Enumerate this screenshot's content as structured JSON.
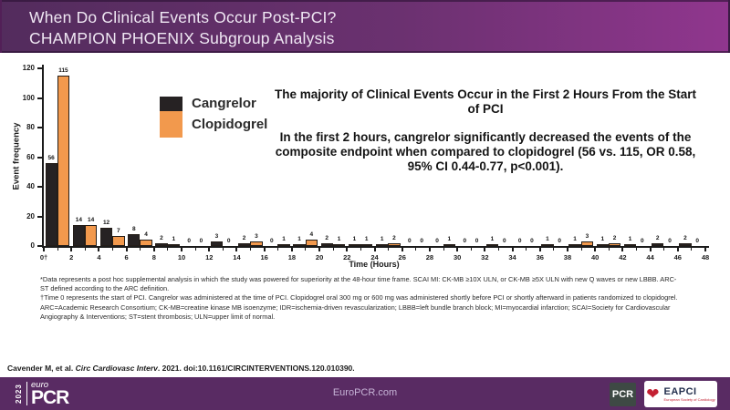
{
  "header": {
    "line1": "When Do Clinical Events Occur Post-PCI?",
    "line2": "CHAMPION PHOENIX Subgroup Analysis"
  },
  "chart_data": {
    "type": "bar",
    "title": "",
    "xlabel": "Time (Hours)",
    "ylabel": "Event frequency",
    "ylim": [
      0,
      120
    ],
    "xlim_hours": [
      0,
      48
    ],
    "bin_width_hours": 2,
    "grid": false,
    "legend_position": "inside-upper-left",
    "y_ticks": [
      0,
      20,
      40,
      60,
      80,
      100,
      120
    ],
    "x_tick_labels": [
      "0†",
      "2",
      "4",
      "6",
      "8",
      "10",
      "12",
      "14",
      "16",
      "18",
      "20",
      "22",
      "24",
      "26",
      "28",
      "30",
      "32",
      "34",
      "36",
      "38",
      "40",
      "42",
      "44",
      "46",
      "48"
    ],
    "series": [
      {
        "name": "Cangrelor",
        "color": "#262223",
        "values": [
          56,
          14,
          12,
          8,
          2,
          0,
          3,
          2,
          0,
          1,
          2,
          1,
          1,
          0,
          0,
          0,
          1,
          0,
          1,
          1,
          1,
          1,
          2,
          2
        ]
      },
      {
        "name": "Clopidogrel",
        "color": "#f2994d",
        "values": [
          115,
          14,
          7,
          4,
          1,
          0,
          0,
          3,
          1,
          4,
          1,
          1,
          2,
          0,
          1,
          0,
          0,
          0,
          0,
          3,
          2,
          0,
          0,
          0
        ]
      }
    ]
  },
  "annotation": {
    "heading": "The majority of Clinical Events Occur in the First 2 Hours From the Start of PCI",
    "body": "In the first 2 hours, cangrelor significantly decreased the events of the composite endpoint when compared to clopidogrel (56 vs. 115, OR 0.58, 95% CI 0.44-0.77, p<0.001)."
  },
  "footnotes": [
    "*Data represents a post hoc supplemental analysis in which the study was powered for superiority at the 48-hour time frame. SCAI MI: CK-MB ≥10X ULN, or CK-MB ≥5X ULN with new Q waves or new LBBB.  ARC-ST defined according to the ARC definition.",
    "†Time 0 represents the start of PCI. Cangrelor was administered at the time of PCI. Clopidogrel oral 300 mg or 600 mg was administered shortly before PCI or shortly afterward in patients randomized  to clopidogrel.",
    "ARC=Academic Research Consortium; CK-MB=creatine kinase MB isoenzyme; IDR=ischemia-driven revascularization; LBBB=left bundle branch block; MI=myocardial infarction; SCAI=Society for Cardiovascular Angiography & Interventions; ST=stent thrombosis; ULN=upper limit of normal."
  ],
  "citation": {
    "authors": "Cavender M, et al. ",
    "journal": "Circ Cardiovasc Interv",
    "rest": ". 2021. doi:10.1161/CIRCINTERVENTIONS.120.010390."
  },
  "footer": {
    "site": "EuroPCR.com",
    "logo": {
      "year": "2023",
      "euro": "euro",
      "pcr": "PCR"
    },
    "pcr_badge": "PCR",
    "eapci_name": "EAPCI",
    "eapci_subtitle": "European Society of Cardiology"
  },
  "colors": {
    "header_gradient_left": "#532c5d",
    "header_gradient_right": "#90368e",
    "footer_bar": "#592b63",
    "cangrelor": "#262223",
    "clopidogrel": "#f2994d",
    "axis": "#1b1b1b"
  }
}
